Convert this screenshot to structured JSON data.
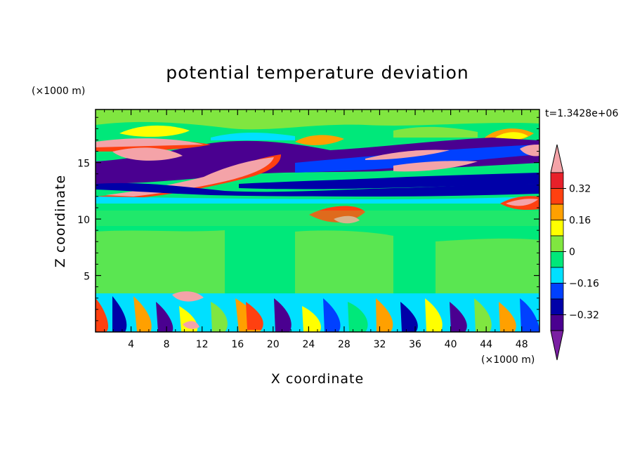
{
  "chart_data": {
    "type": "heatmap",
    "title": "potential temperature deviation",
    "xlabel": "X coordinate",
    "ylabel": "Z coordinate",
    "x_unit_label": "(×1000 m)",
    "y_unit_label": "(×1000 m)",
    "time_label": "t=1.3428e+06",
    "x_ticks": [
      4,
      8,
      12,
      16,
      20,
      24,
      28,
      32,
      36,
      40,
      44,
      48
    ],
    "y_ticks": [
      5,
      10,
      15
    ],
    "xlim": [
      0,
      50
    ],
    "ylim": [
      0,
      19.7
    ],
    "colorbar": {
      "levels": [
        -0.48,
        -0.4,
        -0.32,
        -0.24,
        -0.16,
        -0.08,
        0,
        0.08,
        0.16,
        0.24,
        0.32,
        0.4,
        0.48
      ],
      "labels": [
        "0.32",
        "0.16",
        "0",
        "-0.16",
        "-0.32"
      ],
      "label_values": [
        0.32,
        0.16,
        0,
        -0.16,
        -0.32
      ],
      "colors": [
        "#7a1fa2",
        "#4a0090",
        "#0000a8",
        "#0040ff",
        "#00e0ff",
        "#00e87a",
        "#80e640",
        "#ffff00",
        "#ffa000",
        "#ff4010",
        "#e8202a",
        "#f4a3a8"
      ],
      "colors_order": "low-to-high"
    },
    "regions": [
      {
        "band": "0–3.5",
        "pattern": "alternating warm and cold cells (near-surface turbulence)"
      },
      {
        "band": "3.5–11",
        "pattern": "mostly near-zero (green)"
      },
      {
        "band": "11–18",
        "pattern": "sloping layers of strong warm (pink/red) and cold (purple/blue) deviations"
      },
      {
        "band": "18–19.7",
        "pattern": "near-zero (green) with small warm patches"
      }
    ]
  }
}
